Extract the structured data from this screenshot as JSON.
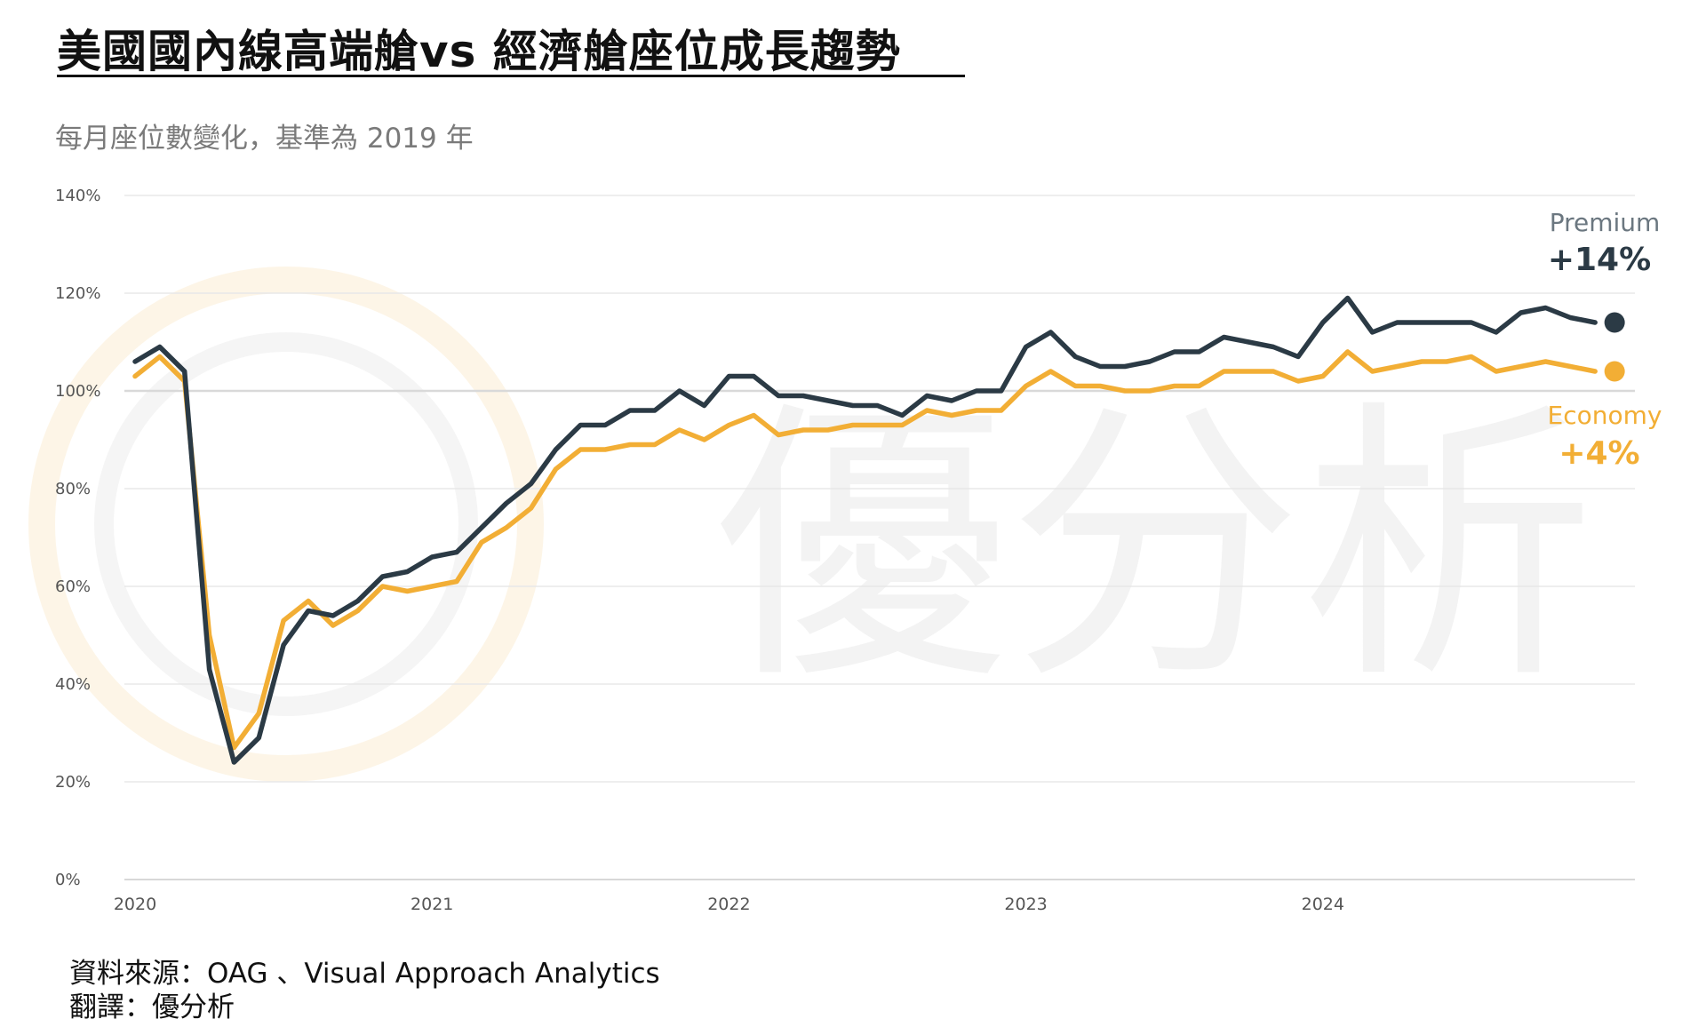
{
  "title": "美國國內線高端艙vs 經濟艙座位成長趨勢",
  "subtitle": "每月座位數變化，基準為 2019 年",
  "source": {
    "label": "資料來源：",
    "text": "OAG 、Visual Approach Analytics"
  },
  "translator": {
    "label": "翻譯：",
    "text": "優分析"
  },
  "watermark": "優分析",
  "colors": {
    "premium": "#2b3a45",
    "economy": "#f2ae35",
    "grid": "#e8e8e8",
    "baseline": "#d9d9d9",
    "tick": "#555555"
  },
  "chart_data": {
    "type": "line",
    "x_ticks": [
      "2020",
      "2021",
      "2022",
      "2023",
      "2024"
    ],
    "y_ticks": [
      "0%",
      "20%",
      "40%",
      "60%",
      "80%",
      "100%",
      "120%",
      "140%"
    ],
    "ylim": [
      0,
      140
    ],
    "grid": true,
    "legend": "end-labels-right",
    "series": [
      {
        "name": "Premium",
        "end_label": "+14%",
        "values": [
          106,
          109,
          104,
          43,
          24,
          29,
          48,
          55,
          54,
          57,
          62,
          63,
          66,
          67,
          72,
          77,
          81,
          88,
          93,
          93,
          96,
          96,
          100,
          97,
          103,
          103,
          99,
          99,
          98,
          97,
          97,
          95,
          99,
          98,
          100,
          100,
          109,
          112,
          107,
          105,
          105,
          106,
          108,
          108,
          111,
          110,
          109,
          107,
          114,
          119,
          112,
          114,
          114,
          114,
          114,
          112,
          116,
          117,
          115,
          114
        ]
      },
      {
        "name": "Economy",
        "end_label": "+4%",
        "values": [
          103,
          107,
          102,
          50,
          27,
          34,
          53,
          57,
          52,
          55,
          60,
          59,
          60,
          61,
          69,
          72,
          76,
          84,
          88,
          88,
          89,
          89,
          92,
          90,
          93,
          95,
          91,
          92,
          92,
          93,
          93,
          93,
          96,
          95,
          96,
          96,
          101,
          104,
          101,
          101,
          100,
          100,
          101,
          101,
          104,
          104,
          104,
          102,
          103,
          108,
          104,
          105,
          106,
          106,
          107,
          104,
          105,
          106,
          105,
          104
        ]
      }
    ]
  }
}
